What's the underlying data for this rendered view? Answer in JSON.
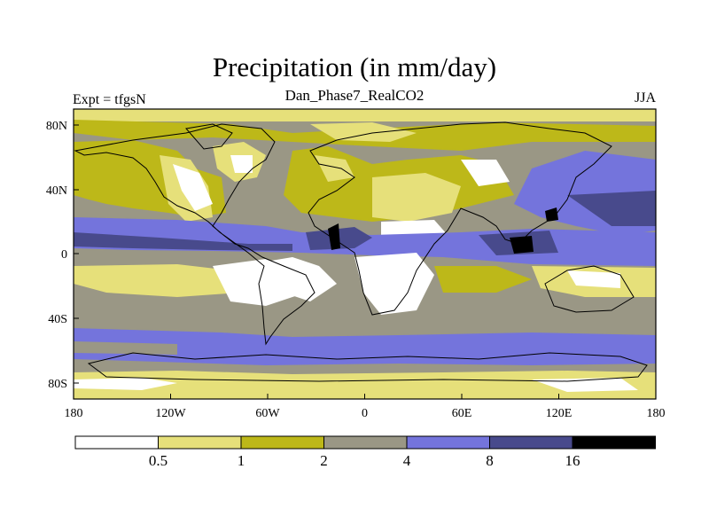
{
  "title": "Precipitation (in mm/day)",
  "subtitle": "Dan_Phase7_RealCO2",
  "left_label": "Expt = tfgsN",
  "right_label": "JJA",
  "x_ticks": [
    "180",
    "120W",
    "60W",
    "0",
    "60E",
    "120E",
    "180"
  ],
  "y_ticks": [
    "80N",
    "40N",
    "0",
    "40S",
    "80S"
  ],
  "colors": {
    "lt05": "#ffffff",
    "c05_1": "#e6e07a",
    "c1_2": "#bdb819",
    "c2_4": "#9a9785",
    "c4_8": "#7474dc",
    "c8_16": "#484a8c",
    "gt16": "#000000"
  },
  "colorbar": {
    "labels": [
      "0.5",
      "1",
      "2",
      "4",
      "8",
      "16"
    ],
    "colors": [
      "#ffffff",
      "#e6e07a",
      "#bdb819",
      "#9a9785",
      "#7474dc",
      "#484a8c",
      "#000000"
    ]
  }
}
